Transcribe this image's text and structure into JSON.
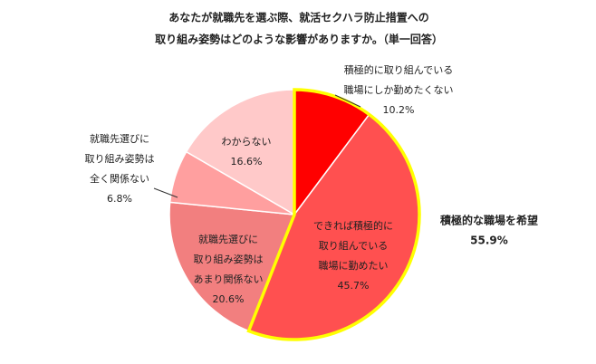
{
  "chart_data": {
    "type": "pie",
    "title": [
      "あなたが就職先を選ぶ際、就活セクハラ防止措置への",
      "取り組み姿勢はどのような影響がありますか。（単一回答）"
    ],
    "categories": [
      [
        "積極的に取り組んでいる",
        "職場にしか勤めたくない"
      ],
      [
        "できれば積極的に",
        "取り組んでいる",
        "職場に勤めたい"
      ],
      [
        "就職先選びに",
        "取り組み姿勢は",
        "あまり関係ない"
      ],
      [
        "就職先選びに",
        "取り組み姿勢は",
        "全く関係ない"
      ],
      [
        "わからない"
      ]
    ],
    "values": [
      10.2,
      45.7,
      20.6,
      6.8,
      16.6
    ],
    "value_labels": [
      "10.2%",
      "45.7%",
      "20.6%",
      "6.8%",
      "16.6%"
    ],
    "colors": [
      "#ff0000",
      "#ff5050",
      "#f27f7f",
      "#ff9f9f",
      "#ffc9c9"
    ],
    "annotation": {
      "label": "積極的な職場を希望",
      "value": 55.9,
      "value_label": "55.9%",
      "color": "#e60000",
      "outline": "#ffff00"
    }
  }
}
